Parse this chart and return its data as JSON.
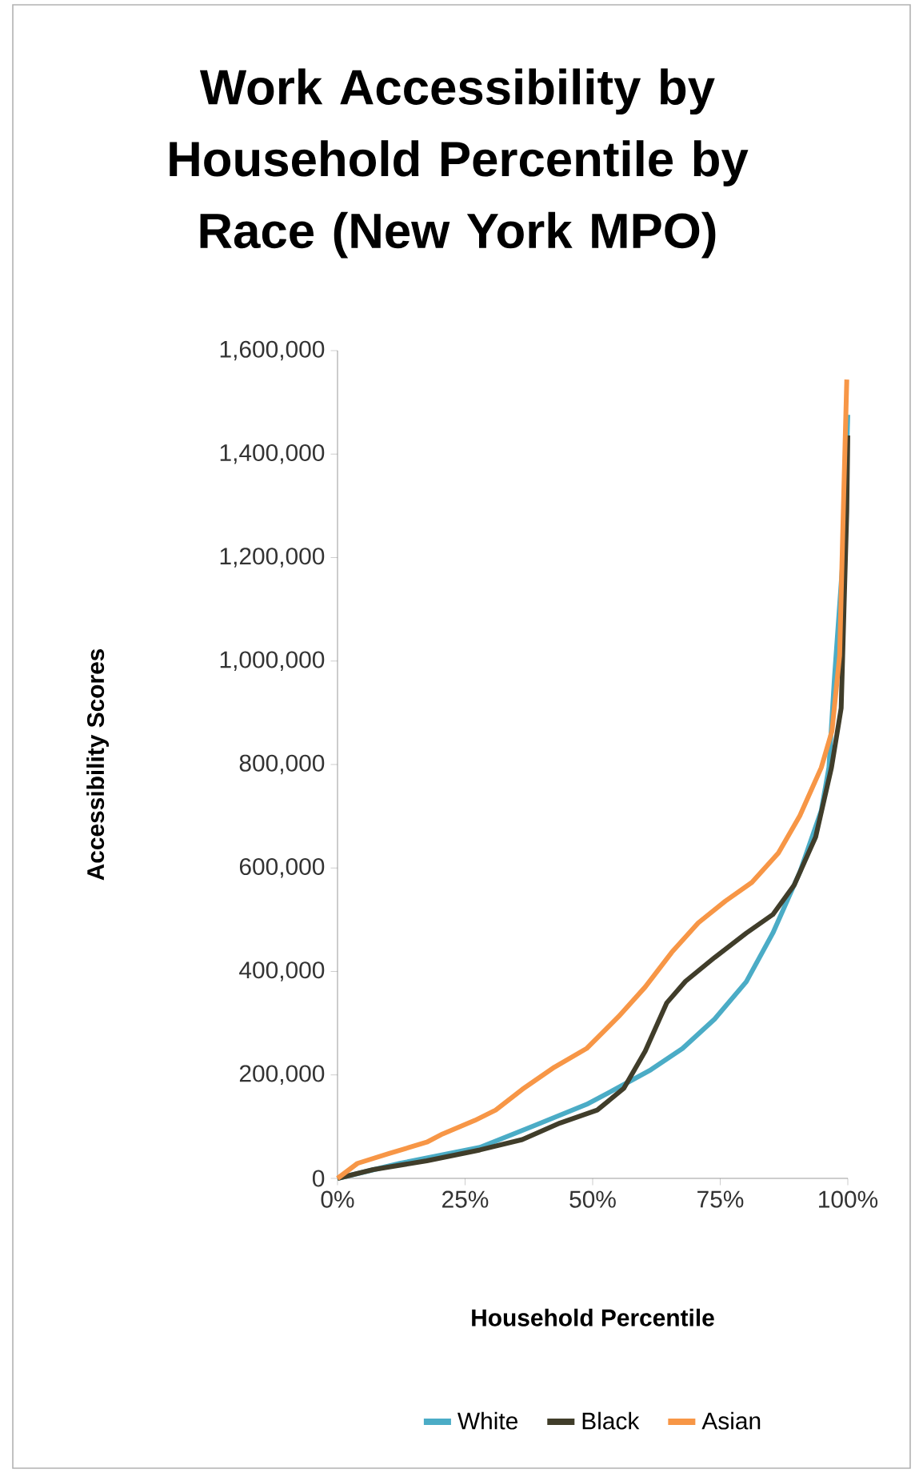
{
  "chart_data": {
    "type": "line",
    "title": "Work Accessibility by Household Percentile by Race (New York MPO)",
    "xlabel": "Household Percentile",
    "ylabel": "Accessibility Scores",
    "xlim": [
      0,
      100
    ],
    "ylim": [
      0,
      1600000
    ],
    "xticks": [
      {
        "value": 0,
        "label": "0%"
      },
      {
        "value": 25,
        "label": "25%"
      },
      {
        "value": 50,
        "label": "50%"
      },
      {
        "value": 75,
        "label": "75%"
      },
      {
        "value": 100,
        "label": "100%"
      }
    ],
    "yticks": [
      0,
      {
        "value": 200000,
        "label": "200,000"
      },
      {
        "value": 400000,
        "label": "400,000"
      },
      {
        "value": 600000,
        "label": "600,000"
      },
      {
        "value": 800000,
        "label": "800,000"
      },
      {
        "value": 1000000,
        "label": "1,000,000"
      },
      {
        "value": 1200000,
        "label": "1,200,000"
      },
      {
        "value": 1400000,
        "label": "1,400,000"
      },
      {
        "value": 1600000,
        "label": "1,600,000"
      }
    ],
    "legend": "bottom",
    "line_style": "solid",
    "series": [
      {
        "name": "White",
        "color": "#4bacc6",
        "x": [
          0,
          12.2,
          27.9,
          38.3,
          48.8,
          55.1,
          61.4,
          67.6,
          73.9,
          80.1,
          85.3,
          90.6,
          94.8,
          96.3,
          97.4,
          99.2,
          100
        ],
        "values": [
          0,
          29000,
          60000,
          101000,
          143000,
          176000,
          210000,
          251000,
          308000,
          380000,
          474000,
          592000,
          711000,
          794000,
          970000,
          1219000,
          1476000
        ]
      },
      {
        "name": "Black",
        "color": "#403d2a",
        "x": [
          0,
          7,
          17.5,
          27.9,
          36.2,
          43.6,
          50.9,
          56.1,
          60.3,
          64.5,
          68.2,
          73.9,
          80.1,
          85.3,
          89.5,
          93.7,
          96.8,
          98.7,
          99.8,
          100
        ],
        "values": [
          0,
          17000,
          34000,
          55000,
          75000,
          107000,
          132000,
          174000,
          246000,
          339000,
          381000,
          427000,
          474000,
          510000,
          567000,
          660000,
          794000,
          909000,
          1290000,
          1436000
        ]
      },
      {
        "name": "Asian",
        "color": "#f79646",
        "x": [
          0,
          3.9,
          10.1,
          17.5,
          20.6,
          26.9,
          31,
          36.2,
          42.5,
          48.8,
          55.1,
          60.3,
          65.5,
          70.7,
          76,
          81.2,
          86.4,
          90.6,
          94.8,
          96.9,
          98.4,
          99.2,
          99.8
        ],
        "values": [
          0,
          29000,
          48000,
          70000,
          86000,
          112000,
          132000,
          172000,
          215000,
          251000,
          313000,
          370000,
          437000,
          494000,
          536000,
          572000,
          629000,
          701000,
          794000,
          865000,
          1011000,
          1321000,
          1544000
        ]
      }
    ]
  }
}
